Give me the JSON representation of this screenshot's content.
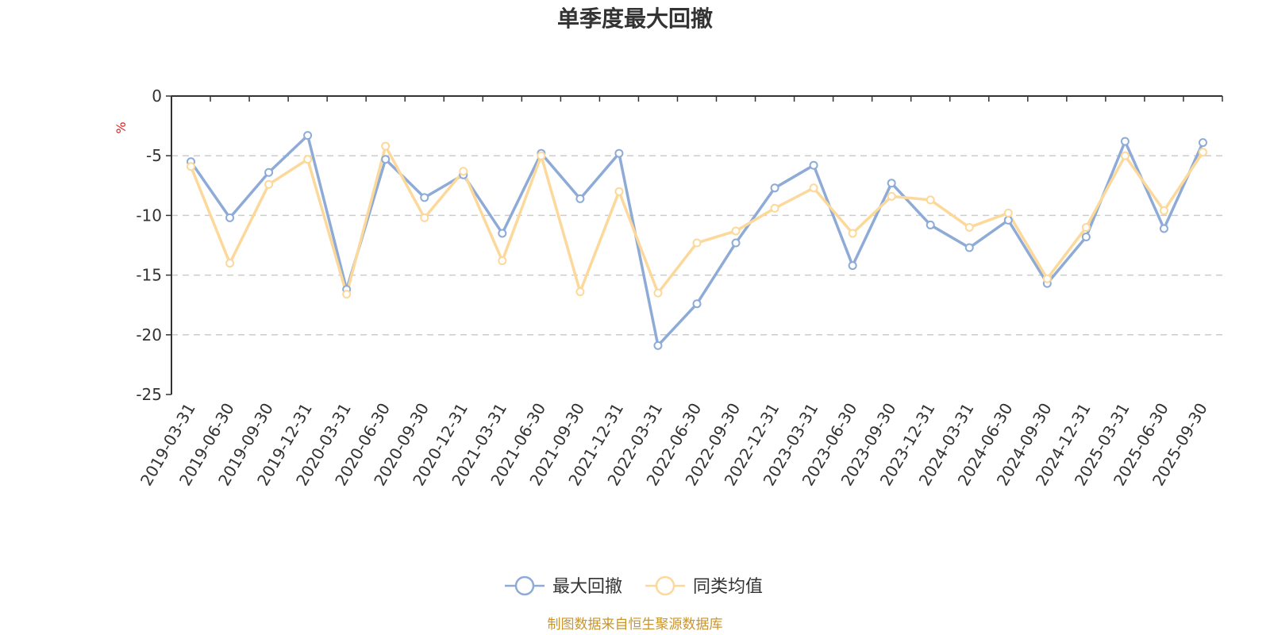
{
  "chart_data": {
    "type": "line",
    "title": "单季度最大回撤",
    "ylabel": "%",
    "ylim": [
      -25,
      0
    ],
    "yticks": [
      0,
      -5,
      -10,
      -15,
      -20,
      -25
    ],
    "grid": true,
    "legend_position": "bottom",
    "categories": [
      "2019-03-31",
      "2019-06-30",
      "2019-09-30",
      "2019-12-31",
      "2020-03-31",
      "2020-06-30",
      "2020-09-30",
      "2020-12-31",
      "2021-03-31",
      "2021-06-30",
      "2021-09-30",
      "2021-12-31",
      "2022-03-31",
      "2022-06-30",
      "2022-09-30",
      "2022-12-31",
      "2023-03-31",
      "2023-06-30",
      "2023-09-30",
      "2023-12-31",
      "2024-03-31",
      "2024-06-30",
      "2024-09-30",
      "2024-12-31",
      "2025-03-31",
      "2025-06-30",
      "2025-09-30"
    ],
    "series": [
      {
        "name": "最大回撤",
        "color": "#8eabd7",
        "values": [
          -5.5,
          -10.2,
          -6.4,
          -3.3,
          -16.2,
          -5.3,
          -8.5,
          -6.6,
          -11.5,
          -4.8,
          -8.6,
          -4.8,
          -20.9,
          -17.4,
          -12.3,
          -7.7,
          -5.8,
          -14.2,
          -7.3,
          -10.8,
          -12.7,
          -10.4,
          -15.7,
          -11.8,
          -3.8,
          -11.1,
          -3.9
        ]
      },
      {
        "name": "同类均值",
        "color": "#fcd99a",
        "values": [
          -5.9,
          -14.0,
          -7.4,
          -5.3,
          -16.6,
          -4.2,
          -10.2,
          -6.3,
          -13.8,
          -5.0,
          -16.4,
          -8.0,
          -16.5,
          -12.3,
          -11.3,
          -9.4,
          -7.7,
          -11.5,
          -8.4,
          -8.7,
          -11.0,
          -9.8,
          -15.3,
          -11.0,
          -5.0,
          -9.6,
          -4.7
        ]
      }
    ],
    "source": "制图数据来自恒生聚源数据库",
    "source_color": "#c8952e",
    "unit_color": "#e02020"
  }
}
